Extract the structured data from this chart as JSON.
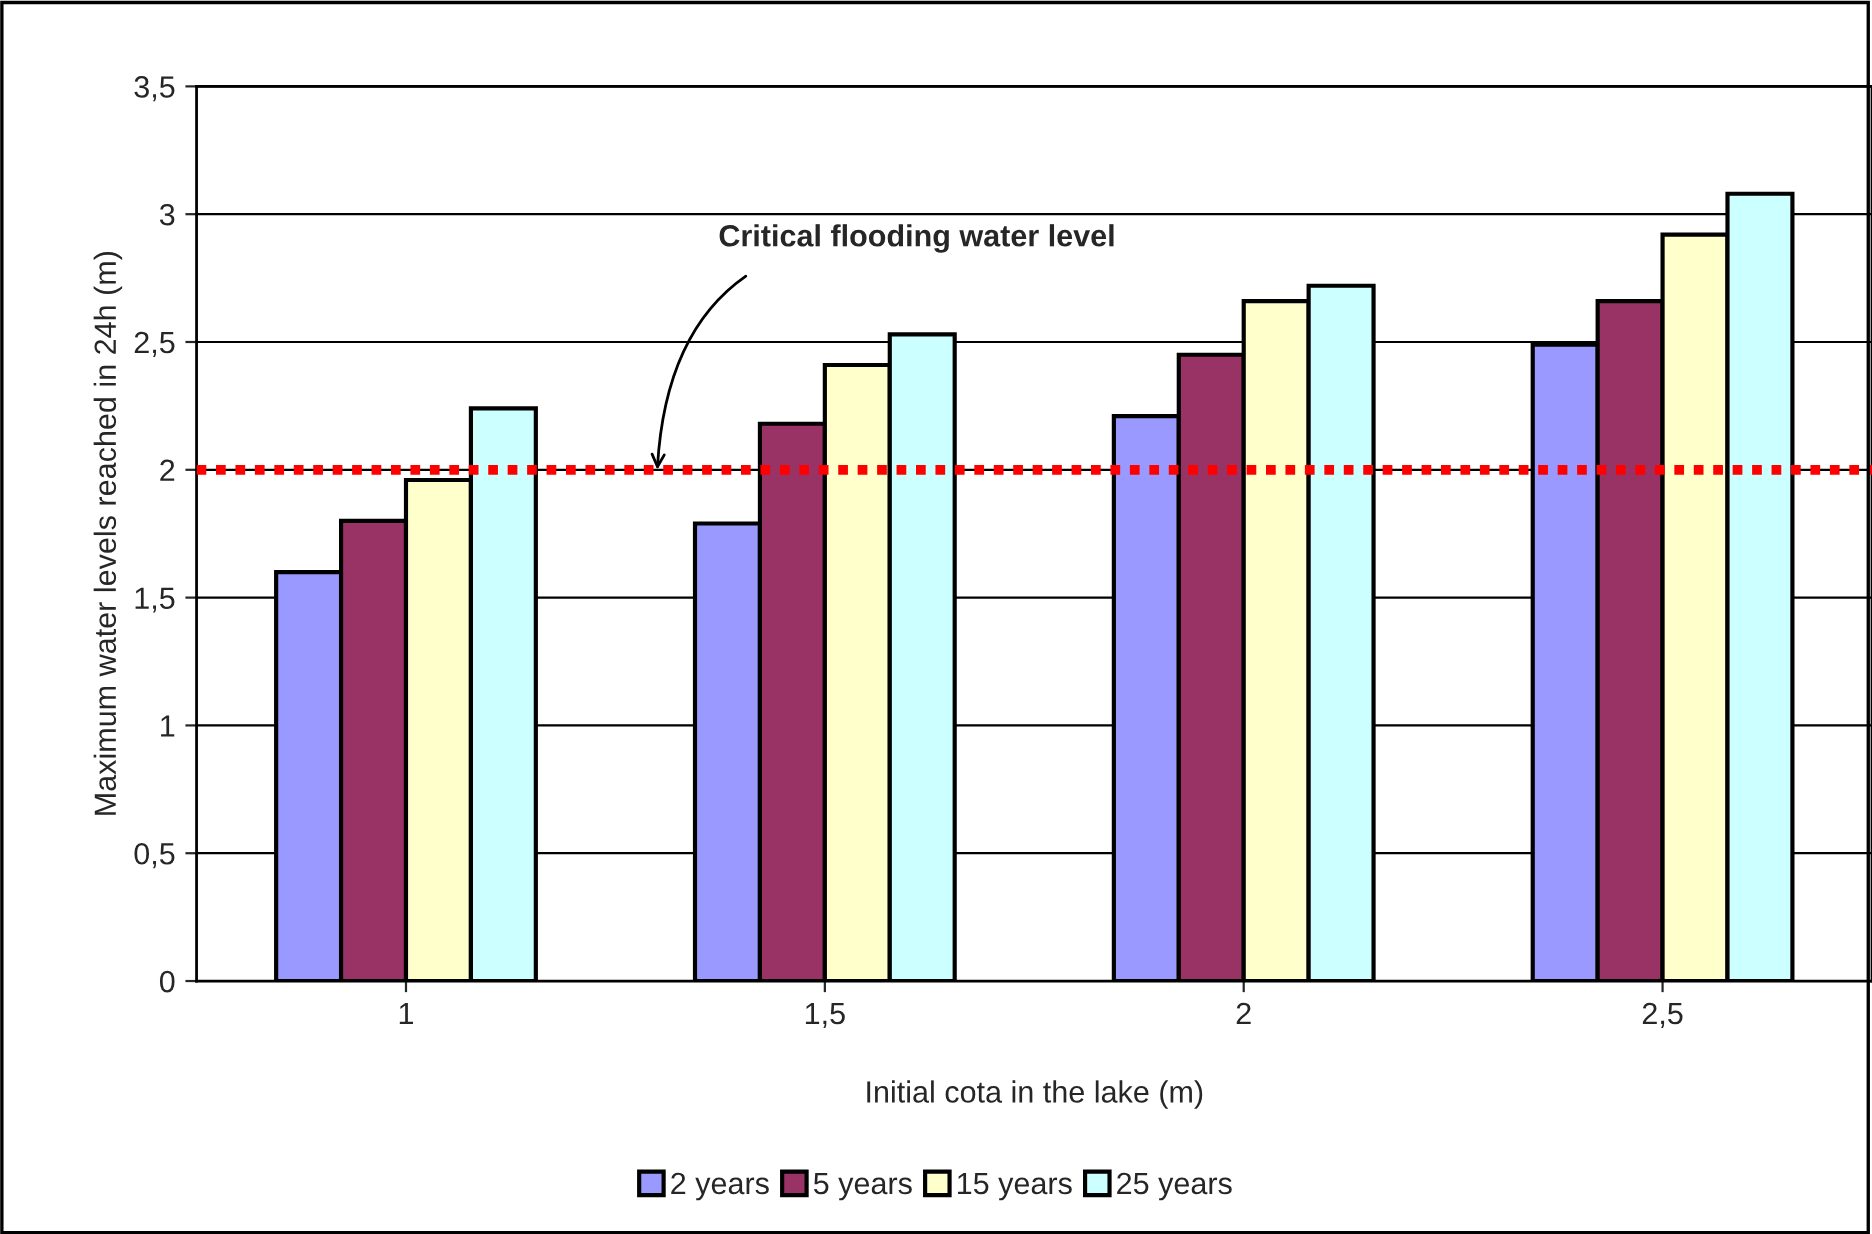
{
  "chart_data": {
    "type": "bar",
    "xlabel": "Initial cota in the lake (m)",
    "ylabel": "Maximum water levels reached in 24h (m)",
    "categories": [
      "1",
      "1,5",
      "2",
      "2,5"
    ],
    "series": [
      {
        "name": "2 years",
        "color": "#9999ff",
        "values": [
          1.6,
          1.79,
          2.21,
          2.49
        ]
      },
      {
        "name": "5 years",
        "color": "#993366",
        "values": [
          1.8,
          2.18,
          2.45,
          2.66
        ]
      },
      {
        "name": "15 years",
        "color": "#ffffcc",
        "values": [
          1.96,
          2.41,
          2.66,
          2.92
        ]
      },
      {
        "name": "25 years",
        "color": "#ccffff",
        "values": [
          2.24,
          2.53,
          2.72,
          3.08
        ]
      }
    ],
    "ylim": [
      0,
      3.5
    ],
    "yticks": [
      0,
      {
        "value": 0.5,
        "label": "0,5"
      },
      1,
      {
        "value": 1.5,
        "label": "1,5"
      },
      2,
      {
        "value": 2.5,
        "label": "2,5"
      },
      3,
      {
        "value": 3.5,
        "label": "3,5"
      }
    ],
    "grid": "y",
    "legend": "bottom",
    "ref_lines": [
      {
        "axis": "y",
        "value": 2,
        "color": "#ff0000",
        "line_style": "dotted",
        "label": "Critical flooding water level"
      }
    ]
  }
}
